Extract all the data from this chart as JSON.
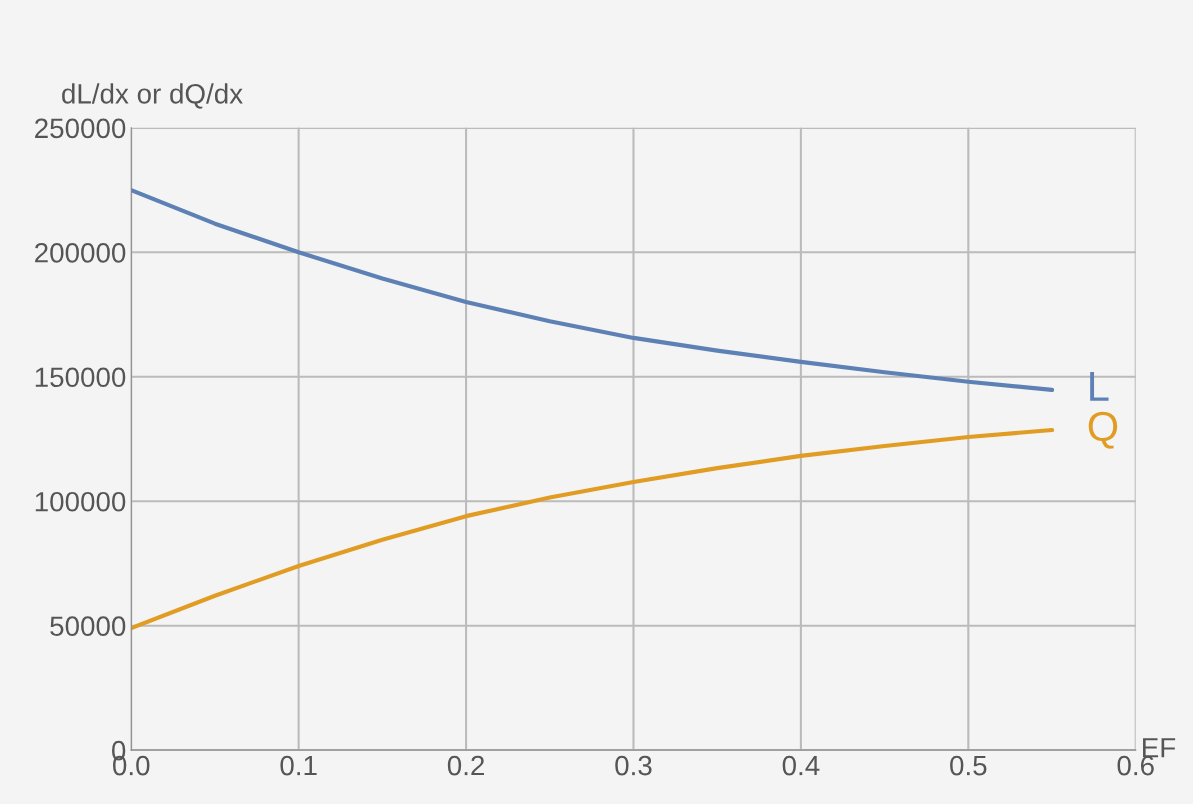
{
  "chart_data": {
    "type": "line",
    "xlabel": "EF",
    "ylabel": "dL/dx or dQ/dx",
    "x": [
      0,
      0.05,
      0.1,
      0.15,
      0.2,
      0.25,
      0.3,
      0.35,
      0.4,
      0.45,
      0.5,
      0.55
    ],
    "series": [
      {
        "name": "L",
        "color": "#5e81b5",
        "values": [
          225000,
          211500,
          200000,
          189500,
          180000,
          172300,
          165600,
          160500,
          156000,
          151800,
          148000,
          144700
        ]
      },
      {
        "name": "Q",
        "color": "#e19c24",
        "values": [
          49000,
          62000,
          74000,
          84500,
          94000,
          101500,
          107700,
          113300,
          118200,
          122200,
          125800,
          128600
        ]
      }
    ],
    "xlim": [
      0,
      0.6
    ],
    "xticks": [
      {
        "value": 0,
        "label": "0.0"
      },
      0.1,
      0.2,
      0.3,
      0.4,
      0.5,
      0.6
    ],
    "ylim": [
      0,
      250000
    ],
    "yticks": [
      0,
      50000,
      100000,
      150000,
      200000,
      250000
    ],
    "grid": true,
    "line_style": "solid",
    "marker": "none"
  }
}
